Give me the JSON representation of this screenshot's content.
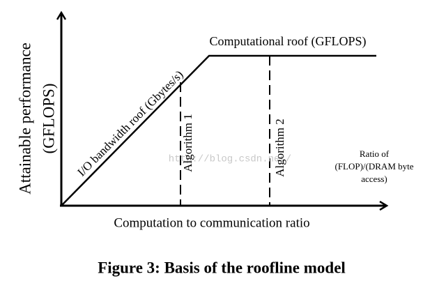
{
  "diagram": {
    "y_axis_label": [
      "Attainable performance",
      "(GFLOPS)"
    ],
    "x_axis_label": "Computation to communication ratio",
    "x_axis_end_label": [
      "Ratio of",
      "(FLOP)/(DRAM byte",
      "access)"
    ],
    "bandwidth_roof": "I/O bandwidth roof (Gbytes/s)",
    "compute_roof": "Computational roof (GFLOPS)",
    "algorithms": [
      "Algorithm 1",
      "Algorithm 2"
    ],
    "watermark": "http://blog.csdn.net/"
  },
  "caption": "Figure 3: Basis of the roofline model"
}
